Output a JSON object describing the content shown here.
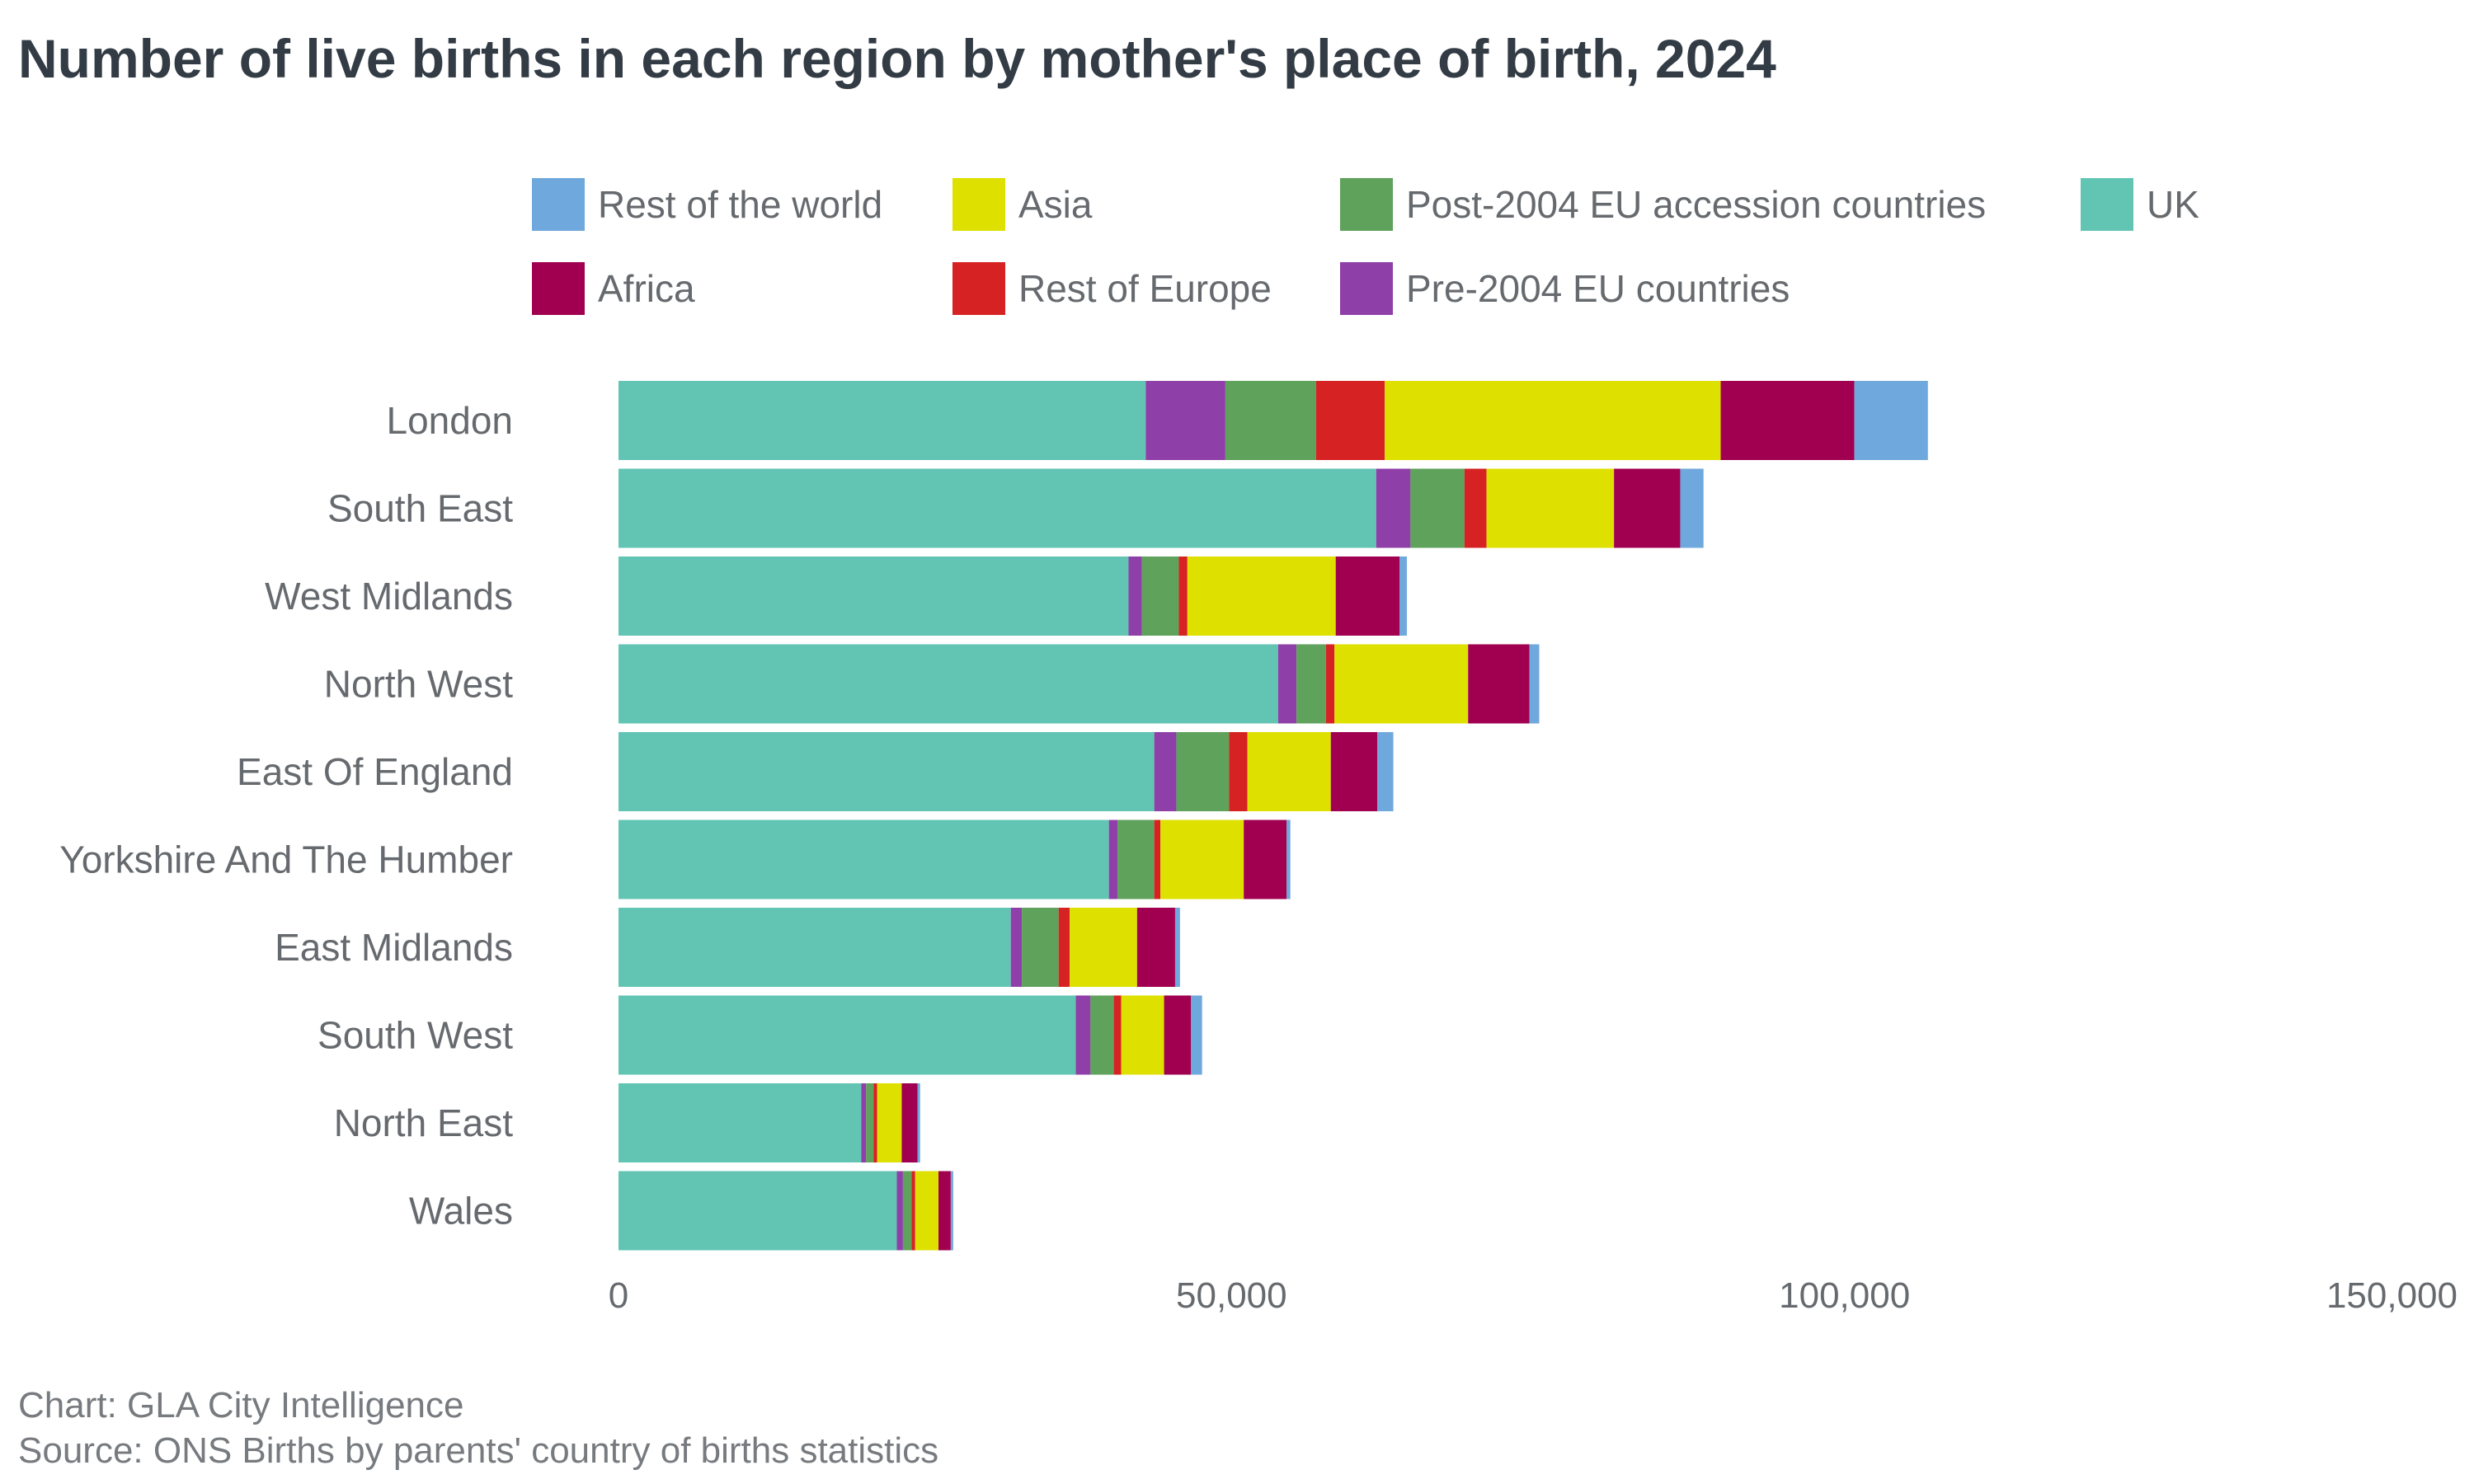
{
  "title": "Number of live births in each region by mother's place of birth, 2024",
  "footer": {
    "chart_credit": "Chart: GLA City Intelligence",
    "source": "Source: ONS Births by parents' country of births statistics"
  },
  "colors": {
    "title": "#333c45",
    "text": "#666a6e"
  },
  "chart_data": {
    "type": "bar",
    "orientation": "horizontal",
    "stacked": true,
    "title": "Number of live births in each region by mother's place of birth, 2024",
    "xlabel": "",
    "ylabel": "",
    "xlim": [
      0,
      150000
    ],
    "xticks": [
      0,
      50000,
      100000,
      150000
    ],
    "xtick_labels": [
      "0",
      "50,000",
      "100,000",
      "150,000"
    ],
    "grid": false,
    "legend_position": "top",
    "categories": [
      "London",
      "South East",
      "West Midlands",
      "North West",
      "East Of England",
      "Yorkshire And The Humber",
      "East Midlands",
      "South West",
      "North East",
      "Wales"
    ],
    "legend_order": [
      "Rest of the world",
      "Asia",
      "Post-2004 EU accession countries",
      "UK",
      "Africa",
      "Rest of Europe",
      "Pre-2004 EU countries"
    ],
    "series": [
      {
        "name": "UK",
        "color": "#62c5b4",
        "values": [
          43000,
          61800,
          41600,
          53800,
          43700,
          40000,
          32000,
          37300,
          19800,
          22700
        ]
      },
      {
        "name": "Pre-2004 EU countries",
        "color": "#8f3fa8",
        "values": [
          6500,
          2800,
          1100,
          1500,
          1800,
          700,
          900,
          1200,
          400,
          500
        ]
      },
      {
        "name": "Post-2004 EU accession countries",
        "color": "#5fa25b",
        "values": [
          7400,
          4400,
          3000,
          2400,
          4300,
          3000,
          3000,
          1900,
          600,
          700
        ]
      },
      {
        "name": "Rest of Europe",
        "color": "#d62222",
        "values": [
          5600,
          1800,
          700,
          700,
          1500,
          500,
          900,
          600,
          300,
          300
        ]
      },
      {
        "name": "Asia",
        "color": "#dee000",
        "values": [
          27400,
          10400,
          12100,
          10900,
          6800,
          6800,
          5500,
          3500,
          2000,
          1900
        ]
      },
      {
        "name": "Africa",
        "color": "#a0004f",
        "values": [
          10900,
          5400,
          5200,
          5000,
          3800,
          3500,
          3100,
          2200,
          1300,
          1000
        ]
      },
      {
        "name": "Rest of the world",
        "color": "#6fa8dc",
        "values": [
          6000,
          1900,
          600,
          800,
          1300,
          300,
          400,
          900,
          200,
          200
        ]
      }
    ]
  }
}
